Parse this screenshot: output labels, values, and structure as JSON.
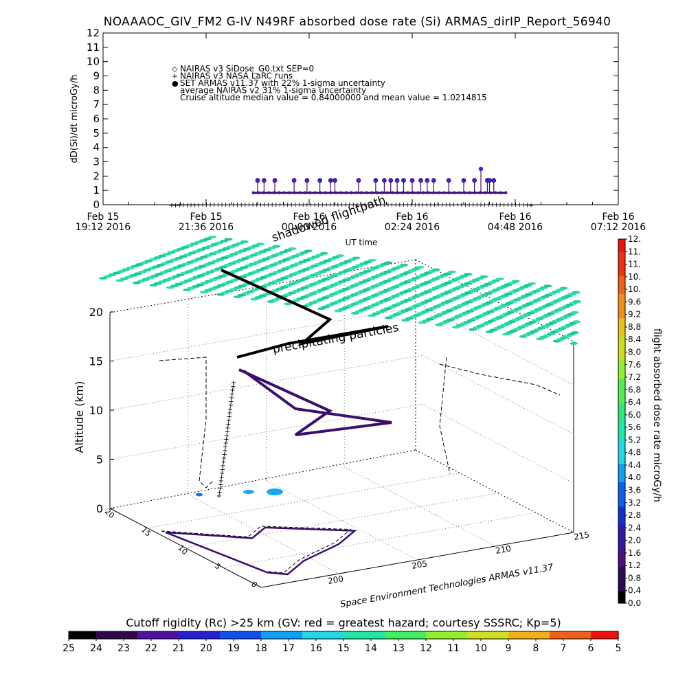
{
  "title": "NOAAAOC_GIV_FM2 G-IV   N49RF  absorbed dose rate (Si) ARMAS_dirIP_Report_56940",
  "chart_data": [
    {
      "type": "scatter",
      "ylabel": "dD(Si)/dt microGy/h",
      "xlabel": "UT time",
      "ylim": [
        0,
        12
      ],
      "yticks": [
        "0",
        "1",
        "2",
        "3",
        "4",
        "5",
        "6",
        "7",
        "8",
        "9",
        "10",
        "11",
        "12"
      ],
      "xlim_hours": [
        0,
        12
      ],
      "xticks": [
        {
          "date": "Feb 15",
          "time": "19:12 2016"
        },
        {
          "date": "Feb 15",
          "time": "21:36 2016"
        },
        {
          "date": "Feb 16",
          "time": "00:00 2016"
        },
        {
          "date": "Feb 16",
          "time": "02:24 2016"
        },
        {
          "date": "Feb 16",
          "time": "04:48 2016"
        },
        {
          "date": "Feb 16",
          "time": "07:12 2016"
        }
      ],
      "legend": [
        {
          "symbol": "◇",
          "text": "NAIRAS v3 SiDose_G0.txt SEP=0"
        },
        {
          "symbol": "+",
          "text": "NAIRAS v3 NASA LaRC runs"
        },
        {
          "symbol": "●",
          "text": "SET ARMAS v11.37 with 22% 1-sigma uncertainty"
        },
        {
          "symbol": "",
          "text": "average NAIRAS v2 31% 1-sigma uncertainty"
        },
        {
          "symbol": "",
          "text": "Cruise altitude median value = 0.84000000 and mean value = 1.0214815"
        }
      ],
      "armas_baseline": 0.84,
      "armas_spike_value": 1.7,
      "armas_max": 2.5,
      "armas_start_hour": 3.5,
      "armas_end_hour": 9.4,
      "armas_spike_hours": [
        3.6,
        3.75,
        4.0,
        4.45,
        4.75,
        5.05,
        5.3,
        5.4,
        5.95,
        6.35,
        6.55,
        6.7,
        6.85,
        7.0,
        7.2,
        7.4,
        7.55,
        7.7,
        8.05,
        8.4,
        8.65,
        8.95,
        9.0,
        9.1
      ],
      "armas_max_hour": 8.8,
      "nairas_start_hour": 1.6,
      "nairas_end_hour": 10.0,
      "nairas_cruise_value": 0.06,
      "series": [
        {
          "name": "NAIRAS v3 SiDose_G0.txt SEP=0",
          "color": "#000000"
        },
        {
          "name": "SET ARMAS v11.37 with 22% 1-sigma uncertainty",
          "color": "#2020e0"
        }
      ]
    },
    {
      "type": "line",
      "zlabel": "Altitude (km)",
      "zticks": [
        "0",
        "5",
        "10",
        "15",
        "20"
      ],
      "x_axis_ticks": [
        "200",
        "205",
        "210",
        "215"
      ],
      "y_axis_ticks": [
        "0",
        "5",
        "10",
        "15",
        "20"
      ],
      "annotations": [
        "shadowed flightpath",
        "precipitating particles"
      ],
      "credit": "Space Environment Technologies ARMAS v11.37",
      "grid": true
    },
    {
      "type": "heatmap",
      "colorbar_label": "flight absorbed dose rate microGy/h",
      "colorbar_ticks": [
        "0.0",
        "0.4",
        "0.8",
        "1.2",
        "1.6",
        "2.0",
        "2.4",
        "2.8",
        "3.2",
        "3.6",
        "4.0",
        "4.4",
        "4.8",
        "5.2",
        "5.6",
        "6.0",
        "6.4",
        "6.8",
        "7.2",
        "7.6",
        "8.0",
        "8.4",
        "8.8",
        "9.2",
        "9.6",
        "10.",
        "10.",
        "11.",
        "11.",
        "12."
      ]
    },
    {
      "type": "heatmap",
      "colorbar_label": "Cutoff rigidity (Rc) >25 km (GV: red = greatest hazard; courtesy SSSRC; Kp=5)",
      "colorbar_ticks": [
        "25",
        "24",
        "23",
        "22",
        "21",
        "20",
        "19",
        "18",
        "17",
        "16",
        "15",
        "14",
        "13",
        "12",
        "11",
        "10",
        "9",
        "8",
        "7",
        "6",
        "5"
      ]
    }
  ]
}
